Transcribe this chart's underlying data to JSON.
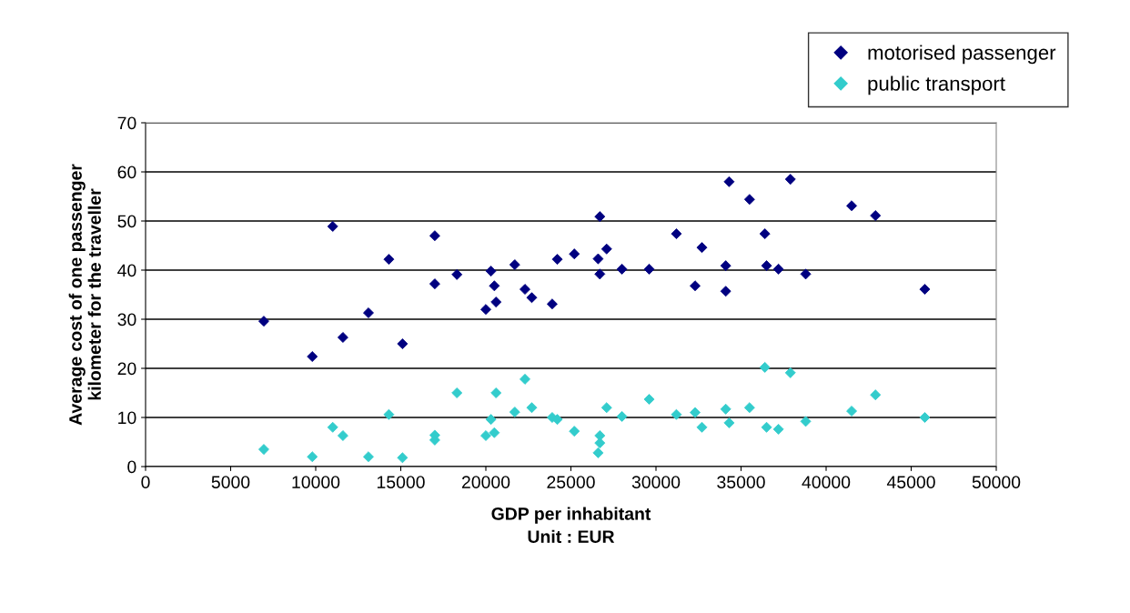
{
  "chart_data": {
    "type": "scatter",
    "xlabel": "GDP per inhabitant\nUnit : EUR",
    "ylabel": "Average cost of one passenger\nkilometer for the traveller",
    "xlim": [
      0,
      50000
    ],
    "xticks": [
      0,
      5000,
      10000,
      15000,
      20000,
      25000,
      30000,
      35000,
      40000,
      45000,
      50000
    ],
    "ylim": [
      0,
      70
    ],
    "yticks": [
      0,
      10,
      20,
      30,
      40,
      50,
      60,
      70
    ],
    "grid": "y",
    "legend": "top right",
    "marker": "diamond",
    "series": [
      {
        "name": "motorised passenger",
        "color": "#000080",
        "x": [
          6950,
          9800,
          11000,
          11600,
          13100,
          14300,
          15100,
          17000,
          17000,
          18300,
          20000,
          20300,
          20500,
          20600,
          21700,
          22300,
          22700,
          23900,
          24200,
          25200,
          26600,
          26700,
          26700,
          27100,
          28000,
          29600,
          31200,
          32300,
          32700,
          34100,
          34100,
          34300,
          35500,
          36400,
          36500,
          37200,
          37900,
          38800,
          41500,
          42900,
          45800
        ],
        "values": [
          29.6,
          22.4,
          48.9,
          26.3,
          31.3,
          42.2,
          25.0,
          47.0,
          37.2,
          39.1,
          32.0,
          39.8,
          36.8,
          33.5,
          41.1,
          36.1,
          34.4,
          33.1,
          42.2,
          43.3,
          42.3,
          50.9,
          39.2,
          44.3,
          40.2,
          40.2,
          47.4,
          36.8,
          44.6,
          40.9,
          35.7,
          58.0,
          54.4,
          47.4,
          40.9,
          40.2,
          58.5,
          39.2,
          53.1,
          51.1,
          36.1
        ]
      },
      {
        "name": "public transport",
        "color": "#33cccc",
        "x": [
          6950,
          9800,
          11000,
          11600,
          13100,
          14300,
          15100,
          17000,
          17000,
          18300,
          20000,
          20300,
          20500,
          20600,
          21700,
          22300,
          22700,
          23900,
          24200,
          25200,
          26600,
          26700,
          26700,
          27100,
          28000,
          29600,
          31200,
          32300,
          32700,
          34100,
          34300,
          35500,
          36400,
          36500,
          37200,
          37900,
          38800,
          41500,
          42900,
          45800
        ],
        "values": [
          3.5,
          2.0,
          8.0,
          6.3,
          2.0,
          10.6,
          1.8,
          6.4,
          5.4,
          15.0,
          6.3,
          9.6,
          6.9,
          15.0,
          11.1,
          17.8,
          12.0,
          10.0,
          9.6,
          7.2,
          2.8,
          6.3,
          4.8,
          12.0,
          10.2,
          13.7,
          10.6,
          11.0,
          8.0,
          11.7,
          8.9,
          12.0,
          20.2,
          8.0,
          7.6,
          19.1,
          9.2,
          11.3,
          14.6,
          10.0
        ]
      }
    ]
  }
}
